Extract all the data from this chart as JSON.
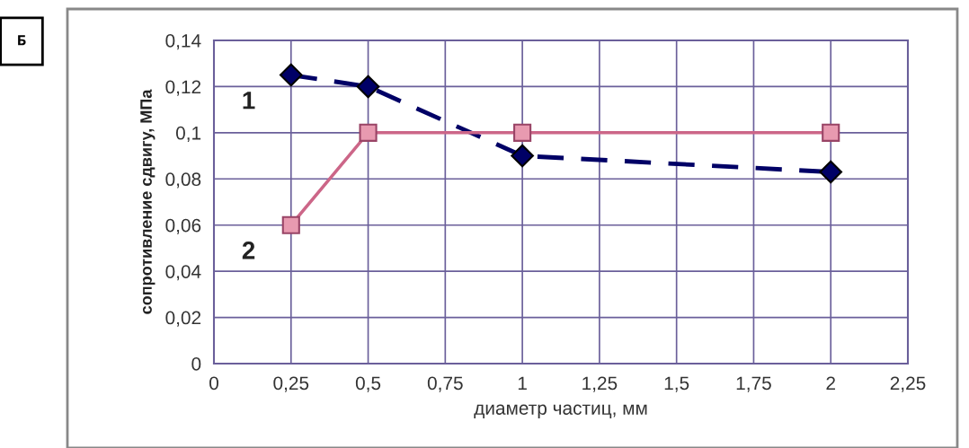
{
  "chart_data": {
    "type": "line",
    "title": "Б",
    "xlabel": "диаметр частиц, мм",
    "ylabel": "сопротивление сдвигу, МПа",
    "x": [
      0.25,
      0.5,
      1,
      2
    ],
    "series": [
      {
        "color": "#000066",
        "values": [
          0.125,
          0.12,
          0.09,
          0.083
        ],
        "marker": "diamond",
        "line_style": "dashed"
      },
      {
        "color": "#cc6688",
        "values": [
          0.06,
          0.1,
          0.1,
          0.1
        ],
        "marker": "square",
        "line_style": "solid"
      }
    ],
    "xlim": [
      0,
      2.25
    ],
    "xticks": [
      0,
      {
        "value": 0.25,
        "label": "0,25"
      },
      {
        "value": 0.5,
        "label": "0,5"
      },
      {
        "value": 0.75,
        "label": "0,75"
      },
      1,
      {
        "value": 1.25,
        "label": "1,25"
      },
      {
        "value": 1.5,
        "label": "1,5"
      },
      {
        "value": 1.75,
        "label": "1,75"
      },
      2,
      {
        "value": 2.25,
        "label": "2,25"
      }
    ],
    "ylim": [
      0,
      0.14
    ],
    "yticks": [
      0,
      {
        "value": 0.02,
        "label": "0,02"
      },
      {
        "value": 0.04,
        "label": "0,04"
      },
      {
        "value": 0.06,
        "label": "0,06"
      },
      {
        "value": 0.08,
        "label": "0,08"
      },
      {
        "value": 0.1,
        "label": "0,1"
      },
      {
        "value": 0.12,
        "label": "0,12"
      },
      {
        "value": 0.14,
        "label": "0,14"
      }
    ],
    "grid": true,
    "annotations": [
      "1",
      "2"
    ]
  }
}
